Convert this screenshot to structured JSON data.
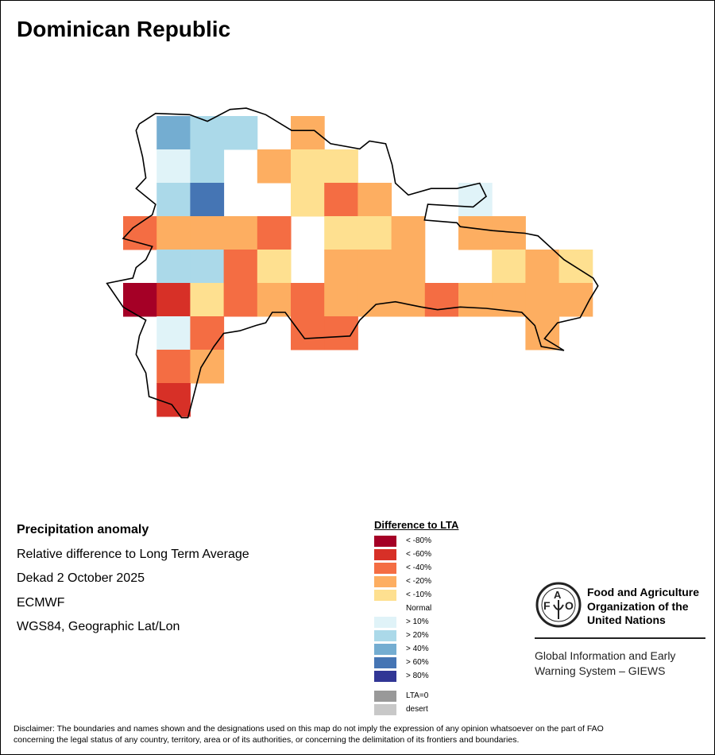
{
  "title": "Dominican Republic",
  "info": {
    "heading": "Precipitation anomaly",
    "subtitle": "Relative difference to Long Term Average",
    "period": "Dekad 2 October 2025",
    "source": "ECMWF",
    "projection": "WGS84, Geographic Lat/Lon"
  },
  "legend": {
    "title": "Difference to LTA",
    "classes": [
      {
        "key": "m80",
        "label": "< -80%",
        "color": "#a50026"
      },
      {
        "key": "m60",
        "label": "< -60%",
        "color": "#d73027"
      },
      {
        "key": "m40",
        "label": "< -40%",
        "color": "#f46d43"
      },
      {
        "key": "m20",
        "label": "< -20%",
        "color": "#fdae61"
      },
      {
        "key": "m10",
        "label": "< -10%",
        "color": "#fee090"
      },
      {
        "key": "n",
        "label": "Normal",
        "color": "#ffffff"
      },
      {
        "key": "p10",
        "label": "> 10%",
        "color": "#e0f3f8"
      },
      {
        "key": "p20",
        "label": "> 20%",
        "color": "#abd9e9"
      },
      {
        "key": "p40",
        "label": "> 40%",
        "color": "#74add1"
      },
      {
        "key": "p60",
        "label": "> 60%",
        "color": "#4575b4"
      },
      {
        "key": "p80",
        "label": "> 80%",
        "color": "#313695"
      }
    ],
    "extra": [
      {
        "key": "lta0",
        "label": "LTA=0",
        "color": "#999999"
      },
      {
        "key": "desert",
        "label": "desert",
        "color": "#c8c8c8"
      }
    ]
  },
  "anomaly_grid": [
    [
      "n",
      "p40",
      "p20",
      "p20",
      "n",
      "m20",
      "n",
      "n",
      "n",
      "n",
      "n",
      "n",
      "n",
      "n"
    ],
    [
      "n",
      "p10",
      "p20",
      "n",
      "m20",
      "m10",
      "m10",
      "n",
      "n",
      "n",
      "n",
      "n",
      "n",
      "n"
    ],
    [
      "n",
      "p20",
      "p60",
      "n",
      "n",
      "m10",
      "m40",
      "m20",
      "n",
      "n",
      "p10",
      "n",
      "n",
      "n"
    ],
    [
      "m40",
      "m20",
      "m20",
      "m20",
      "m40",
      "n",
      "m10",
      "m10",
      "m20",
      "n",
      "m20",
      "m20",
      "n",
      "n"
    ],
    [
      "n",
      "p20",
      "p20",
      "m40",
      "m10",
      "n",
      "m20",
      "m20",
      "m20",
      "n",
      "n",
      "m10",
      "m20",
      "m10"
    ],
    [
      "m80",
      "m60",
      "m10",
      "m40",
      "m20",
      "m40",
      "m20",
      "m20",
      "m20",
      "m40",
      "m20",
      "m20",
      "m20",
      "m20"
    ],
    [
      "n",
      "p10",
      "m40",
      "n",
      "n",
      "m40",
      "m40",
      "n",
      "n",
      "n",
      "n",
      "n",
      "m20",
      "n"
    ],
    [
      "n",
      "m40",
      "m20",
      "n",
      "n",
      "n",
      "n",
      "n",
      "n",
      "n",
      "n",
      "n",
      "n",
      "n"
    ],
    [
      "n",
      "m60",
      "n",
      "n",
      "n",
      "n",
      "n",
      "n",
      "n",
      "n",
      "n",
      "n",
      "n",
      "n"
    ]
  ],
  "logo": {
    "org_line1": "Food and Agriculture",
    "org_line2": "Organization of the",
    "org_line3": "United Nations",
    "emblem_text": "FAO FIAT PANIS"
  },
  "giews": {
    "line1": "Global Information and Early",
    "line2": "Warning System – GIEWS"
  },
  "disclaimer": {
    "line1": "Disclaimer: The boundaries and names shown and the designations used on this map do not imply the expression of any opinion whatsoever on the part of FAO",
    "line2": "concerning the legal status of any country, territory, area or of its authorities, or concerning the delimitation of its frontiers and boundaries."
  }
}
